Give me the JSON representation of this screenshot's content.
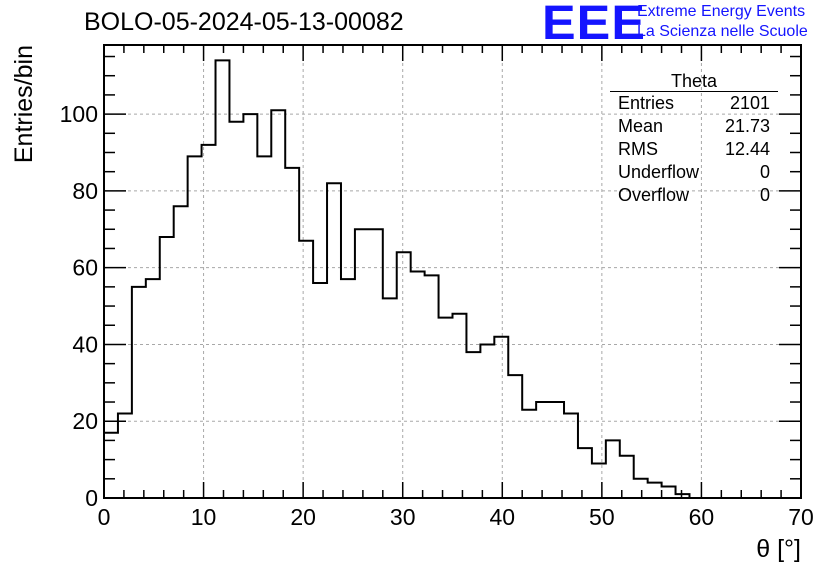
{
  "title": "BOLO-05-2024-05-13-00082",
  "logo": {
    "mark": "EEE",
    "line1": "Extreme Energy Events",
    "line2": "La Scienza nelle Scuole",
    "color": "#1414ff"
  },
  "stats": {
    "name": "Theta",
    "rows": [
      {
        "label": "Entries",
        "value": "2101"
      },
      {
        "label": "Mean",
        "value": "21.73"
      },
      {
        "label": "RMS",
        "value": "12.44"
      },
      {
        "label": "Underflow",
        "value": "0"
      },
      {
        "label": "Overflow",
        "value": "0"
      }
    ]
  },
  "chart_data": {
    "type": "bar",
    "style": "step-histogram",
    "title": "BOLO-05-2024-05-13-00082",
    "xlabel": "θ [°]",
    "ylabel": "Entries/bin",
    "xlim": [
      0,
      70
    ],
    "ylim": [
      0,
      118
    ],
    "bin_width": 1.4,
    "x_ticks": [
      0,
      10,
      20,
      30,
      40,
      50,
      60,
      70
    ],
    "y_ticks": [
      0,
      20,
      40,
      60,
      80,
      100
    ],
    "grid": true,
    "line_color": "#000000",
    "values": [
      17,
      22,
      55,
      57,
      68,
      76,
      89,
      92,
      114,
      98,
      100,
      89,
      101,
      86,
      67,
      56,
      82,
      57,
      70,
      70,
      52,
      64,
      59,
      58,
      47,
      48,
      38,
      40,
      42,
      32,
      23,
      25,
      25,
      22,
      13,
      9,
      15,
      11,
      5,
      4,
      3,
      1,
      0,
      0,
      0,
      0,
      0,
      0,
      0,
      0
    ]
  }
}
